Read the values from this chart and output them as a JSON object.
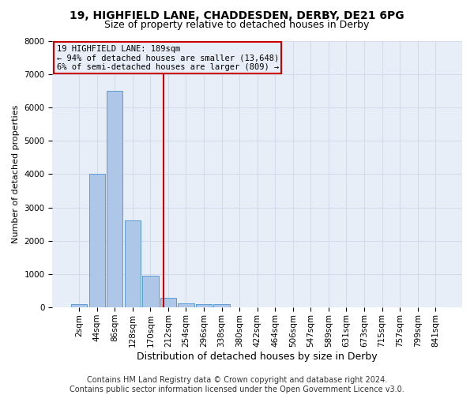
{
  "title1": "19, HIGHFIELD LANE, CHADDESDEN, DERBY, DE21 6PG",
  "title2": "Size of property relative to detached houses in Derby",
  "xlabel": "Distribution of detached houses by size in Derby",
  "ylabel": "Number of detached properties",
  "bar_labels": [
    "2sqm",
    "44sqm",
    "86sqm",
    "128sqm",
    "170sqm",
    "212sqm",
    "254sqm",
    "296sqm",
    "338sqm",
    "380sqm",
    "422sqm",
    "464sqm",
    "506sqm",
    "547sqm",
    "589sqm",
    "631sqm",
    "673sqm",
    "715sqm",
    "757sqm",
    "799sqm",
    "841sqm"
  ],
  "bar_values": [
    100,
    4000,
    6500,
    2600,
    950,
    300,
    120,
    100,
    100,
    0,
    0,
    0,
    0,
    0,
    0,
    0,
    0,
    0,
    0,
    0,
    0
  ],
  "bar_color": "#aec6e8",
  "bar_edge_color": "#5b9bd5",
  "vline_x": 4.75,
  "vline_color": "#cc0000",
  "annotation_line1": "19 HIGHFIELD LANE: 189sqm",
  "annotation_line2": "← 94% of detached houses are smaller (13,648)",
  "annotation_line3": "6% of semi-detached houses are larger (809) →",
  "annotation_box_color": "#cc0000",
  "ylim": [
    0,
    8000
  ],
  "yticks": [
    0,
    1000,
    2000,
    3000,
    4000,
    5000,
    6000,
    7000,
    8000
  ],
  "grid_color": "#d0d8e8",
  "plot_bg_color": "#e8eef8",
  "fig_bg_color": "#ffffff",
  "footer": "Contains HM Land Registry data © Crown copyright and database right 2024.\nContains public sector information licensed under the Open Government Licence v3.0.",
  "title1_fontsize": 10,
  "title2_fontsize": 9,
  "xlabel_fontsize": 9,
  "ylabel_fontsize": 8,
  "tick_fontsize": 7.5,
  "annotation_fontsize": 7.5,
  "footer_fontsize": 7
}
